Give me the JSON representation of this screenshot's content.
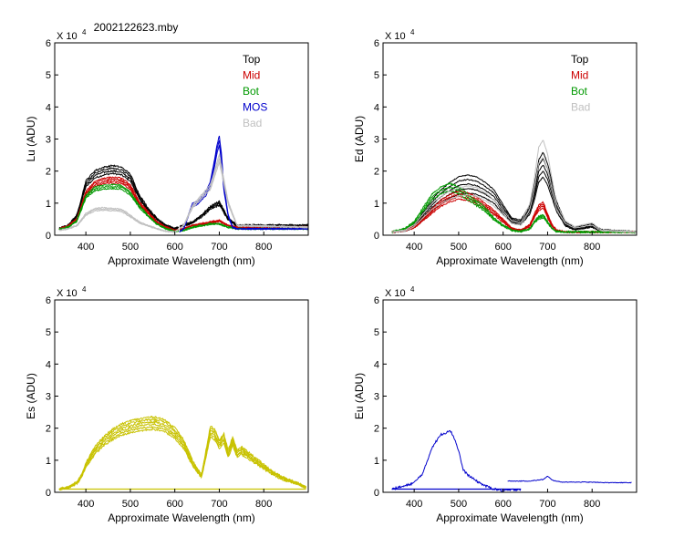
{
  "title": "2002122623.mby",
  "colors": {
    "top": "#000000",
    "mid": "#cc0000",
    "bot": "#009900",
    "mos": "#0000cc",
    "bad": "#c0c0c0",
    "es": "#c8c200",
    "eu": "#0000cc"
  },
  "chart_data": [
    {
      "id": "lu",
      "type": "line",
      "title": "2002122623.mby",
      "ylabel": "Lu  (ADU)",
      "xlabel": "Approximate Wavelength (nm)",
      "multiplier": "X 10",
      "multiplier_exp": "4",
      "xlim": [
        330,
        900
      ],
      "ylim": [
        0,
        6
      ],
      "xticks": [
        "400",
        "500",
        "600",
        "700",
        "800"
      ],
      "yticks": [
        "0",
        "1",
        "2",
        "3",
        "4",
        "5",
        "6"
      ],
      "legend": [
        {
          "label": "Top",
          "color": "#000000"
        },
        {
          "label": "Mid",
          "color": "#cc0000"
        },
        {
          "label": "Bot",
          "color": "#009900"
        },
        {
          "label": "MOS",
          "color": "#0000cc"
        },
        {
          "label": "Bad",
          "color": "#c0c0c0"
        }
      ],
      "series": [
        {
          "name": "Top",
          "color": "#000000",
          "copies": 4,
          "spread": 0.12,
          "jitter": 0.05,
          "x": [
            340,
            360,
            380,
            400,
            420,
            440,
            460,
            480,
            500,
            520,
            540,
            560,
            580,
            600,
            620,
            640,
            660,
            680,
            700,
            720,
            740,
            900
          ],
          "y": [
            0.2,
            0.3,
            0.6,
            1.6,
            1.9,
            2.0,
            2.05,
            2.0,
            1.8,
            1.2,
            0.8,
            0.5,
            0.3,
            0.2,
            0.3,
            0.4,
            0.6,
            0.85,
            1.0,
            0.5,
            0.3,
            0.3
          ],
          "break": 610
        },
        {
          "name": "Mid",
          "color": "#cc0000",
          "copies": 4,
          "spread": 0.1,
          "jitter": 0.04,
          "x": [
            340,
            360,
            380,
            400,
            420,
            440,
            460,
            480,
            500,
            520,
            540,
            560,
            580,
            600,
            620,
            640,
            660,
            680,
            700,
            720,
            740,
            900
          ],
          "y": [
            0.2,
            0.28,
            0.5,
            1.3,
            1.6,
            1.7,
            1.72,
            1.7,
            1.5,
            1.0,
            0.7,
            0.4,
            0.25,
            0.15,
            0.2,
            0.3,
            0.35,
            0.4,
            0.45,
            0.3,
            0.25,
            0.25
          ],
          "break": 610
        },
        {
          "name": "Bot",
          "color": "#009900",
          "copies": 3,
          "spread": 0.08,
          "jitter": 0.04,
          "x": [
            340,
            360,
            380,
            400,
            420,
            440,
            460,
            480,
            500,
            520,
            540,
            560,
            580,
            600,
            620,
            640,
            660,
            680,
            700,
            720,
            740,
            900
          ],
          "y": [
            0.18,
            0.25,
            0.45,
            1.2,
            1.45,
            1.5,
            1.52,
            1.5,
            1.3,
            0.9,
            0.6,
            0.35,
            0.2,
            0.12,
            0.15,
            0.25,
            0.3,
            0.35,
            0.35,
            0.25,
            0.2,
            0.2
          ],
          "break": 610
        },
        {
          "name": "MOS",
          "color": "#0000cc",
          "copies": 3,
          "spread": 0.1,
          "jitter": 0.03,
          "x": [
            610,
            620,
            630,
            640,
            650,
            660,
            670,
            680,
            690,
            695,
            700,
            705,
            710,
            720,
            730,
            740,
            750,
            900
          ],
          "y": [
            0.1,
            0.2,
            0.6,
            0.95,
            1.0,
            1.15,
            1.3,
            1.6,
            2.3,
            2.7,
            2.95,
            2.4,
            1.5,
            0.6,
            0.25,
            0.2,
            0.2,
            0.2
          ]
        },
        {
          "name": "Bad",
          "color": "#c0c0c0",
          "copies": 3,
          "spread": 0.1,
          "jitter": 0.03,
          "x": [
            340,
            360,
            380,
            400,
            420,
            440,
            460,
            480,
            500,
            520,
            540,
            560,
            580,
            600,
            620,
            640,
            660,
            680,
            700,
            720,
            740,
            900
          ],
          "y": [
            0.15,
            0.2,
            0.3,
            0.65,
            0.8,
            0.82,
            0.8,
            0.78,
            0.6,
            0.4,
            0.3,
            0.2,
            0.12,
            0.1,
            0.3,
            0.9,
            1.2,
            1.5,
            2.4,
            1.0,
            0.3,
            0.25
          ],
          "break": 610
        }
      ]
    },
    {
      "id": "ed",
      "type": "line",
      "ylabel": "Ed  (ADU)",
      "xlabel": "Approximate Wavelength (nm)",
      "multiplier": "X 10",
      "multiplier_exp": "4",
      "xlim": [
        330,
        900
      ],
      "ylim": [
        0,
        6
      ],
      "xticks": [
        "400",
        "500",
        "600",
        "700",
        "800"
      ],
      "yticks": [
        "0",
        "1",
        "2",
        "3",
        "4",
        "5",
        "6"
      ],
      "legend": [
        {
          "label": "Top",
          "color": "#000000"
        },
        {
          "label": "Mid",
          "color": "#cc0000"
        },
        {
          "label": "Bot",
          "color": "#009900"
        },
        {
          "label": "Bad",
          "color": "#c0c0c0"
        }
      ],
      "series": [
        {
          "name": "Top",
          "color": "#000000",
          "copies": 5,
          "spread": 0.35,
          "jitter": 0.03,
          "x": [
            350,
            380,
            400,
            420,
            440,
            460,
            480,
            500,
            520,
            540,
            560,
            580,
            600,
            620,
            640,
            660,
            670,
            680,
            690,
            700,
            710,
            720,
            740,
            760,
            780,
            800,
            820,
            900
          ],
          "y": [
            0.1,
            0.15,
            0.3,
            0.6,
            0.95,
            1.2,
            1.4,
            1.55,
            1.6,
            1.55,
            1.4,
            1.2,
            0.8,
            0.45,
            0.4,
            0.8,
            1.3,
            2.0,
            2.2,
            1.9,
            1.4,
            0.9,
            0.35,
            0.2,
            0.25,
            0.3,
            0.15,
            0.1
          ]
        },
        {
          "name": "Mid",
          "color": "#cc0000",
          "copies": 4,
          "spread": 0.2,
          "jitter": 0.04,
          "x": [
            350,
            380,
            400,
            420,
            440,
            460,
            480,
            500,
            520,
            540,
            560,
            580,
            600,
            620,
            640,
            660,
            670,
            680,
            690,
            700,
            710,
            720,
            740,
            760,
            900
          ],
          "y": [
            0.1,
            0.15,
            0.25,
            0.5,
            0.75,
            1.0,
            1.15,
            1.25,
            1.2,
            1.1,
            0.9,
            0.7,
            0.45,
            0.2,
            0.15,
            0.3,
            0.6,
            0.85,
            0.95,
            0.6,
            0.3,
            0.15,
            0.1,
            0.1,
            0.1
          ]
        },
        {
          "name": "Bot",
          "color": "#009900",
          "copies": 3,
          "spread": 0.15,
          "jitter": 0.05,
          "x": [
            350,
            380,
            400,
            420,
            440,
            460,
            480,
            500,
            520,
            540,
            560,
            580,
            600,
            620,
            640,
            660,
            670,
            680,
            690,
            700,
            710,
            720,
            740,
            900
          ],
          "y": [
            0.1,
            0.2,
            0.4,
            0.8,
            1.2,
            1.4,
            1.5,
            1.4,
            1.2,
            1.0,
            0.8,
            0.5,
            0.3,
            0.15,
            0.12,
            0.2,
            0.4,
            0.55,
            0.6,
            0.4,
            0.2,
            0.12,
            0.1,
            0.1
          ]
        },
        {
          "name": "Bad",
          "color": "#c0c0c0",
          "copies": 2,
          "spread": 0.2,
          "jitter": 0.02,
          "x": [
            350,
            380,
            400,
            420,
            440,
            460,
            480,
            500,
            520,
            540,
            560,
            580,
            600,
            620,
            640,
            660,
            670,
            680,
            690,
            700,
            710,
            720,
            740,
            760,
            780,
            800,
            820,
            900
          ],
          "y": [
            0.1,
            0.15,
            0.3,
            0.6,
            0.9,
            1.1,
            1.25,
            1.35,
            1.4,
            1.35,
            1.2,
            1.0,
            0.7,
            0.4,
            0.35,
            0.9,
            1.6,
            2.5,
            2.7,
            2.3,
            1.6,
            0.9,
            0.4,
            0.25,
            0.3,
            0.35,
            0.15,
            0.1
          ]
        }
      ]
    },
    {
      "id": "es",
      "type": "line",
      "ylabel": "Es  (ADU)",
      "xlabel": "Approximate Wavelength (nm)",
      "multiplier": "X 10",
      "multiplier_exp": "4",
      "xlim": [
        330,
        900
      ],
      "ylim": [
        0,
        6
      ],
      "xticks": [
        "400",
        "500",
        "600",
        "700",
        "800"
      ],
      "yticks": [
        "0",
        "1",
        "2",
        "3",
        "4",
        "5",
        "6"
      ],
      "legend": [],
      "series": [
        {
          "name": "Es",
          "color": "#c8c200",
          "copies": 6,
          "spread": 0.18,
          "jitter": 0.06,
          "x": [
            340,
            360,
            380,
            390,
            400,
            420,
            440,
            460,
            480,
            500,
            520,
            540,
            560,
            580,
            600,
            620,
            640,
            660,
            670,
            680,
            690,
            700,
            710,
            720,
            730,
            740,
            750,
            760,
            780,
            800,
            820,
            840,
            860,
            880,
            895
          ],
          "y": [
            0.1,
            0.15,
            0.3,
            0.5,
            0.85,
            1.3,
            1.6,
            1.8,
            1.95,
            2.05,
            2.1,
            2.15,
            2.15,
            2.05,
            1.85,
            1.5,
            0.9,
            0.5,
            1.2,
            1.9,
            1.8,
            1.5,
            1.7,
            1.2,
            1.6,
            1.2,
            1.3,
            1.2,
            1.0,
            0.8,
            0.6,
            0.45,
            0.35,
            0.25,
            0.15
          ],
          "baseline": 0.1
        }
      ]
    },
    {
      "id": "eu",
      "type": "line",
      "ylabel": "Eu  (ADU)",
      "xlabel": "Approximate Wavelength (nm)",
      "multiplier": "X 10",
      "multiplier_exp": "4",
      "xlim": [
        330,
        900
      ],
      "ylim": [
        0,
        6
      ],
      "xticks": [
        "400",
        "500",
        "600",
        "700",
        "800"
      ],
      "yticks": [
        "0",
        "1",
        "2",
        "3",
        "4",
        "5",
        "6"
      ],
      "legend": [],
      "series": [
        {
          "name": "Eu",
          "color": "#0000cc",
          "copies": 1,
          "spread": 0,
          "jitter": 0.07,
          "x": [
            350,
            380,
            400,
            420,
            440,
            450,
            460,
            470,
            480,
            490,
            500,
            510,
            520,
            540,
            560,
            580,
            600,
            640
          ],
          "y": [
            0.1,
            0.2,
            0.3,
            0.6,
            1.4,
            1.6,
            1.8,
            1.85,
            1.95,
            1.7,
            1.3,
            0.7,
            0.55,
            0.35,
            0.2,
            0.1,
            0.05,
            0.1
          ],
          "baseline": 0.1
        },
        {
          "name": "Eu-red",
          "color": "#0000cc",
          "copies": 1,
          "spread": 0,
          "jitter": 0.02,
          "x": [
            610,
            660,
            690,
            700,
            710,
            730,
            780,
            840,
            890
          ],
          "y": [
            0.35,
            0.35,
            0.4,
            0.5,
            0.38,
            0.32,
            0.32,
            0.3,
            0.3
          ]
        }
      ]
    }
  ]
}
